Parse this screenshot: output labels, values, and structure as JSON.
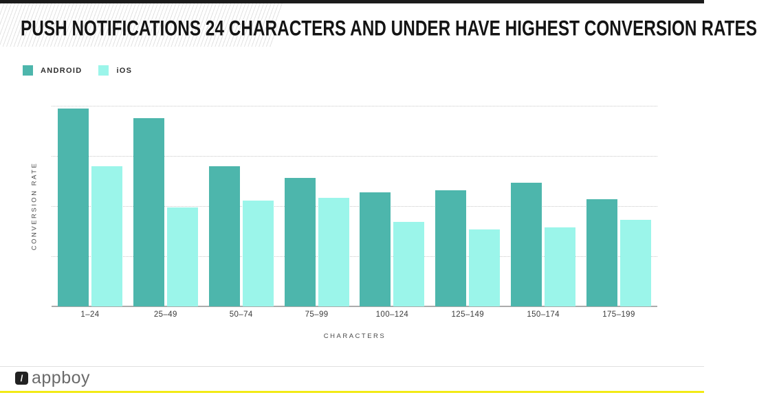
{
  "page": {
    "title": "PUSH NOTIFICATIONS 24 CHARACTERS AND UNDER HAVE HIGHEST CONVERSION RATES"
  },
  "chart_data": {
    "type": "bar",
    "title": "PUSH NOTIFICATIONS 24 CHARACTERS AND UNDER HAVE HIGHEST CONVERSION RATES",
    "categories": [
      "1–24",
      "25–49",
      "50–74",
      "75–99",
      "100–124",
      "125–149",
      "150–174",
      "175–199"
    ],
    "series": [
      {
        "name": "ANDROID",
        "color": "#4db6ac",
        "values": [
          3.94,
          3.76,
          2.8,
          2.56,
          2.27,
          2.31,
          2.47,
          2.14
        ]
      },
      {
        "name": "iOS",
        "color": "#9bf5ea",
        "values": [
          2.79,
          1.97,
          2.11,
          2.16,
          1.68,
          1.53,
          1.58,
          1.72
        ]
      }
    ],
    "xlabel": "CHARACTERS",
    "ylabel": "CONVERSION RATE",
    "ylim": [
      0,
      4
    ],
    "gridline_values": [
      1,
      2,
      3,
      4
    ],
    "y_tick_labels_visible": false,
    "grid": "horizontal-dotted",
    "legend_position": "top-left"
  },
  "footer": {
    "brand": "appboy",
    "logo_glyph": "/"
  },
  "colors": {
    "android": "#4db6ac",
    "ios": "#9bf5ea",
    "top_bar": "#1b1b1b",
    "accent_yellow": "#f2ea15",
    "baseline": "#ababab"
  }
}
